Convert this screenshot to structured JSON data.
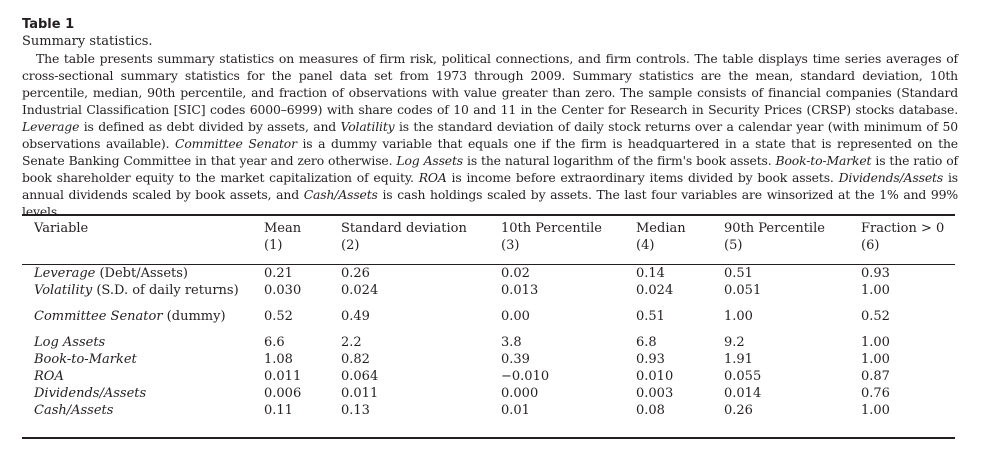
{
  "table": {
    "label": "Table 1",
    "subtitle": "Summary statistics.",
    "description": [
      {
        "t": "The table presents summary statistics on measures of firm risk, political connections, and firm controls. The table displays time series averages of cross-sectional summary statistics for the panel data set from 1973 through 2009. Summary statistics are the mean, standard deviation, 10th percentile, median, 90th percentile, and fraction of observations with value greater than zero. The sample consists of financial companies (Standard Industrial Classification [SIC] codes 6000–6999) with share codes of 10 and 11 in the Center for Research in Security Prices (CRSP) stocks database. "
      },
      {
        "t": "Leverage",
        "i": true
      },
      {
        "t": " is defined as debt divided by assets, and "
      },
      {
        "t": "Volatility",
        "i": true
      },
      {
        "t": " is the standard deviation of daily stock returns over a calendar year (with minimum of 50 observations available). "
      },
      {
        "t": "Committee Senator",
        "i": true
      },
      {
        "t": " is a dummy variable that equals one if the firm is headquartered in a state that is represented on the Senate Banking Committee in that year and zero otherwise. "
      },
      {
        "t": "Log Assets",
        "i": true
      },
      {
        "t": " is the natural logarithm of the firm's book assets. "
      },
      {
        "t": "Book-to-Market",
        "i": true
      },
      {
        "t": " is the ratio of book shareholder equity to the market capitalization of equity. "
      },
      {
        "t": "ROA",
        "i": true
      },
      {
        "t": " is income before extraordinary items divided by book assets. "
      },
      {
        "t": "Dividends/Assets",
        "i": true
      },
      {
        "t": " is annual dividends scaled by book assets, and "
      },
      {
        "t": "Cash/Assets",
        "i": true
      },
      {
        "t": " is cash holdings scaled by assets. The last four variables are winsorized at the 1% and 99% levels."
      }
    ],
    "headers": [
      "Variable",
      "Mean",
      "Standard deviation",
      "10th Percentile",
      "Median",
      "90th Percentile",
      "Fraction > 0"
    ],
    "header_numbers": [
      "",
      "(1)",
      "(2)",
      "(3)",
      "(4)",
      "(5)",
      "(6)"
    ],
    "groups": [
      [
        {
          "name": "Leverage",
          "suffix": " (Debt/Assets)",
          "values": [
            "0.21",
            "0.26",
            "0.02",
            "0.14",
            "0.51",
            "0.93"
          ]
        },
        {
          "name": "Volatility",
          "suffix": " (S.D. of daily returns)",
          "values": [
            "0.030",
            "0.024",
            "0.013",
            "0.024",
            "0.051",
            "1.00"
          ]
        }
      ],
      [
        {
          "name": "Committee Senator",
          "suffix": " (dummy)",
          "values": [
            "0.52",
            "0.49",
            "0.00",
            "0.51",
            "1.00",
            "0.52"
          ]
        }
      ],
      [
        {
          "name": "Log Assets",
          "suffix": "",
          "values": [
            "6.6",
            "2.2",
            "3.8",
            "6.8",
            "9.2",
            "1.00"
          ]
        },
        {
          "name": "Book-to-Market",
          "suffix": "",
          "values": [
            "1.08",
            "0.82",
            "0.39",
            "0.93",
            "1.91",
            "1.00"
          ]
        },
        {
          "name": "ROA",
          "suffix": "",
          "values": [
            "0.011",
            "0.064",
            "−0.010",
            "0.010",
            "0.055",
            "0.87"
          ]
        },
        {
          "name": "Dividends/Assets",
          "suffix": "",
          "values": [
            "0.006",
            "0.011",
            "0.000",
            "0.003",
            "0.014",
            "0.76"
          ]
        },
        {
          "name": "Cash/Assets",
          "suffix": "",
          "values": [
            "0.11",
            "0.13",
            "0.01",
            "0.08",
            "0.26",
            "1.00"
          ]
        }
      ]
    ]
  }
}
